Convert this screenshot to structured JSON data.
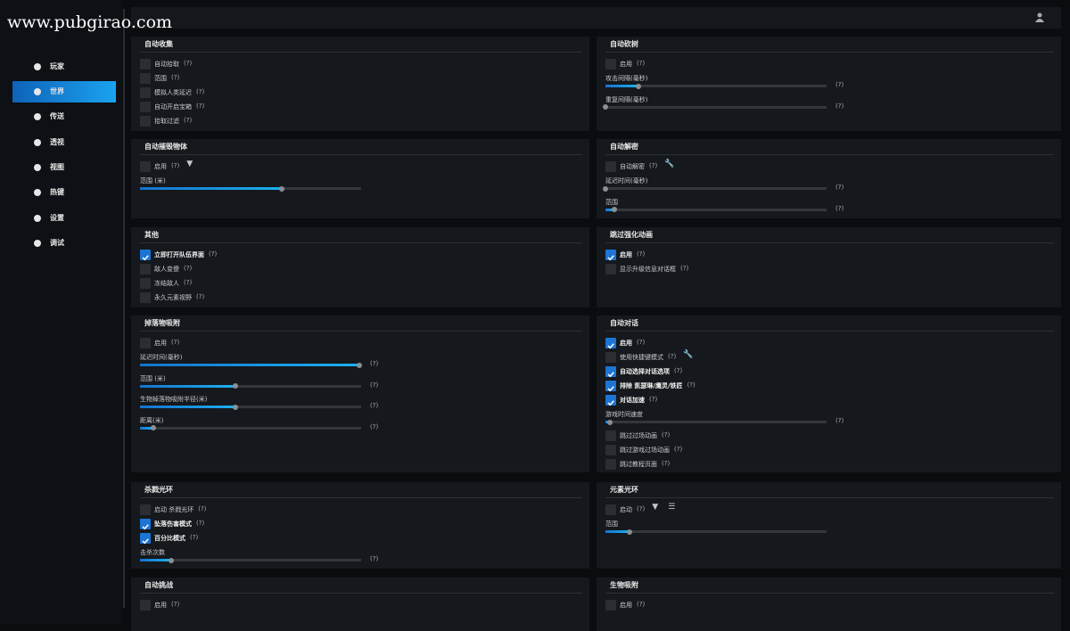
{
  "watermark": "www.pubgirao.com",
  "sidebar": {
    "active": 1,
    "items": [
      "玩家",
      "世界",
      "传送",
      "透视",
      "视图",
      "热键",
      "设置",
      "调试"
    ]
  },
  "panels": [
    {
      "title": "自动收集",
      "items": [
        {
          "label": "自动拾取",
          "help": "(?)",
          "checked": false
        },
        {
          "label": "范围",
          "help": "(?)",
          "checked": false
        },
        {
          "label": "模拟人类延迟",
          "help": "(?)",
          "checked": false
        },
        {
          "label": "自动开启宝箱",
          "help": "(?)",
          "checked": false
        },
        {
          "label": "拾取过滤",
          "help": "(?)",
          "checked": false
        }
      ]
    },
    {
      "title": "自动砍树",
      "items": [
        {
          "label": "启用",
          "help": "(?)",
          "checked": false
        },
        {
          "label": "攻击间隔(毫秒)",
          "help": "(?)",
          "value": 15
        },
        {
          "label": "重复间隔(毫秒)",
          "help": "(?)",
          "value": 0
        }
      ]
    },
    {
      "title": "自动摧毁物体",
      "items": [
        {
          "label": "启用",
          "help": "(?)",
          "checked": false,
          "icons": [
            "filter"
          ]
        },
        {
          "label": "范围 (米)",
          "value": 64
        }
      ]
    },
    {
      "title": "自动解密",
      "items": [
        {
          "label": "自动解密",
          "help": "(?)",
          "checked": false,
          "icons": [
            "wrench"
          ]
        },
        {
          "label": "延迟时间(毫秒)",
          "help": "(?)",
          "value": 0
        },
        {
          "label": "范围",
          "help": "(?)",
          "value": 4
        }
      ]
    },
    {
      "title": "其他",
      "items": [
        {
          "label": "立即打开队伍界面",
          "help": "(?)",
          "checked": true
        },
        {
          "label": "敌人变傻",
          "help": "(?)",
          "checked": false
        },
        {
          "label": "冻结敌人",
          "help": "(?)",
          "checked": false
        },
        {
          "label": "永久元素视野",
          "help": "(?)",
          "checked": false
        }
      ]
    },
    {
      "title": "跳过强化动画",
      "items": [
        {
          "label": "启用",
          "help": "(?)",
          "checked": true
        },
        {
          "label": "显示升级信息对话框",
          "help": "(?)",
          "checked": false
        }
      ]
    },
    {
      "title": "掉落物吸附",
      "items": [
        {
          "label": "启用",
          "help": "(?)",
          "checked": false
        },
        {
          "label": "延迟时间(毫秒)",
          "help": "(?)",
          "value": 99
        },
        {
          "label": "范围 (米)",
          "help": "(?)",
          "value": 43
        },
        {
          "label": "生物掉落物吸附半径(米)",
          "help": "(?)",
          "value": 43
        },
        {
          "label": "距离(米)",
          "help": "(?)",
          "value": 6
        }
      ]
    },
    {
      "title": "自动对话",
      "items": [
        {
          "label": "启用",
          "help": "(?)",
          "checked": true
        },
        {
          "label": "使用快捷键模式",
          "help": "(?)",
          "checked": false,
          "icons": [
            "wrench"
          ]
        },
        {
          "label": "自动选择对话选项",
          "help": "(?)",
          "checked": true
        },
        {
          "label": "排除 凯瑟琳/鹰灵/铁匠",
          "help": "(?)",
          "checked": true
        },
        {
          "label": "对话加速",
          "help": "(?)",
          "checked": true
        },
        {
          "label": "游戏时间速度",
          "help": "(?)",
          "value": 2
        },
        {
          "label": "跳过过场动画",
          "help": "(?)",
          "checked": false
        },
        {
          "label": "跳过游戏过场动画",
          "help": "(?)",
          "checked": false
        },
        {
          "label": "跳过教程页面",
          "help": "(?)",
          "checked": false
        }
      ]
    },
    {
      "title": "杀戮光环",
      "items": [
        {
          "label": "启动 杀戮光环",
          "help": "(?)",
          "checked": false
        },
        {
          "label": "坠落伤害模式",
          "help": "(?)",
          "checked": true
        },
        {
          "label": "百分比模式",
          "help": "(?)",
          "checked": true
        },
        {
          "label": "击杀次数",
          "help": "(?)",
          "value": 14
        }
      ]
    },
    {
      "title": "元素光环",
      "items": [
        {
          "label": "启动",
          "help": "(?)",
          "checked": false,
          "icons": [
            "filter",
            "list"
          ]
        },
        {
          "label": "范围",
          "value": 11
        }
      ]
    },
    {
      "title": "自动挑战",
      "items": [
        {
          "label": "启用",
          "help": "(?)",
          "checked": false
        }
      ]
    },
    {
      "title": "生物吸附",
      "items": [
        {
          "label": "启用",
          "help": "(?)",
          "checked": false
        }
      ]
    }
  ]
}
